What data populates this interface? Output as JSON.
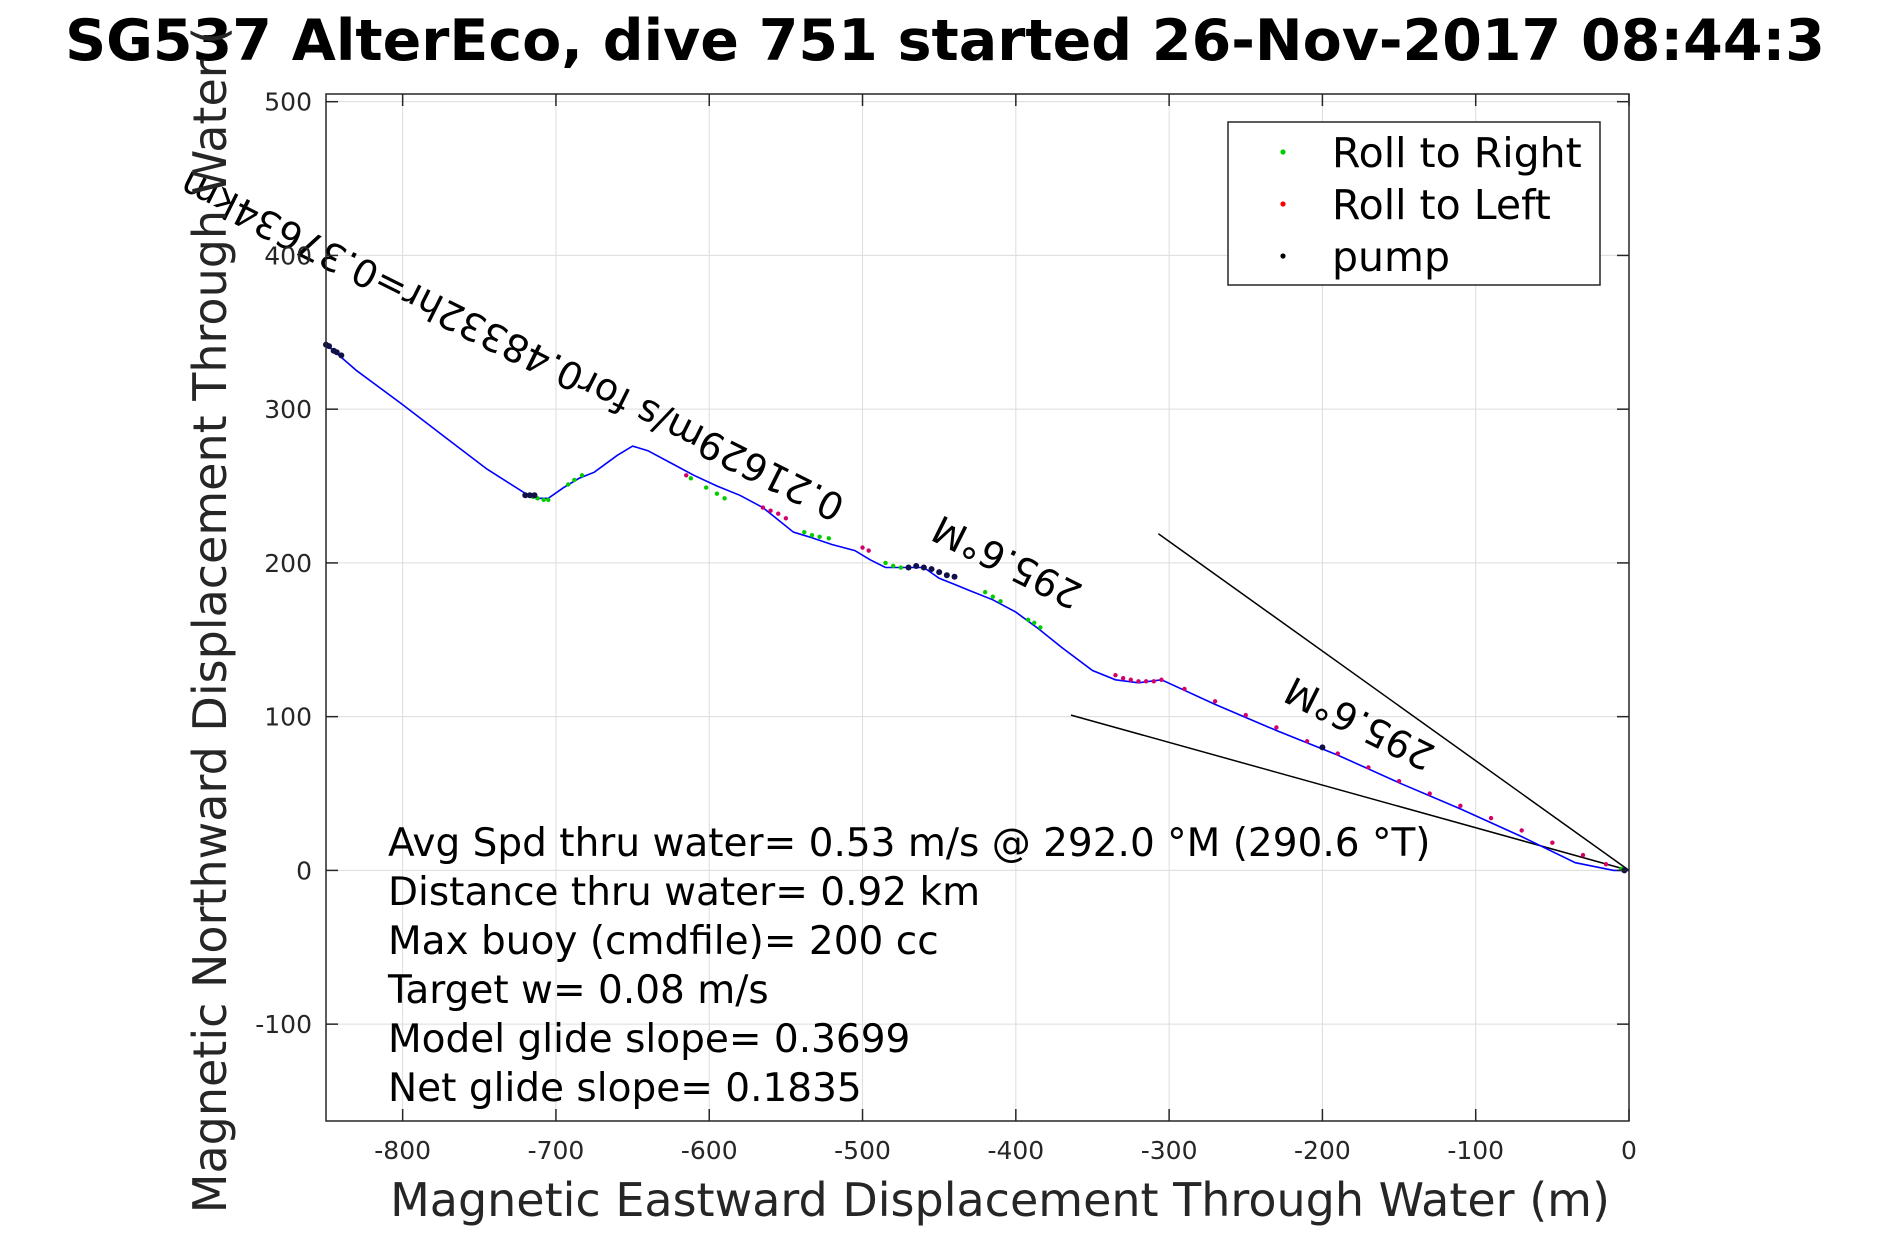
{
  "chart_data": {
    "type": "line",
    "title": "SG537 AlterEco, dive 751 started 26-Nov-2017 08:44:3",
    "xlabel": "Magnetic Eastward Displacement Through Water (m)",
    "ylabel": "Magnetic Northward Displacement Through Water (",
    "xlim": [
      -850,
      0
    ],
    "ylim": [
      -163,
      505
    ],
    "xticks": [
      -800,
      -700,
      -600,
      -500,
      -400,
      -300,
      -200,
      -100,
      0
    ],
    "yticks": [
      -100,
      0,
      100,
      200,
      300,
      400,
      500
    ],
    "xtick_labels": [
      "-800",
      "-700",
      "-600",
      "-500",
      "-400",
      "-300",
      "-200",
      "-100",
      "0"
    ],
    "ytick_labels": [
      "-100",
      "0",
      "100",
      "200",
      "300",
      "400",
      "500"
    ],
    "grid": true,
    "legend": {
      "placement": "top-right",
      "entries": [
        {
          "label": "Roll to Right",
          "color": "#00cc00"
        },
        {
          "label": "Roll to Left",
          "color": "#ff0000"
        },
        {
          "label": "pump",
          "color": "#000000"
        }
      ]
    },
    "track": {
      "name": "track",
      "color": "#0000ff",
      "x": [
        -850,
        -845,
        -830,
        -800,
        -770,
        -745,
        -718,
        -712,
        -705,
        -695,
        -685,
        -675,
        -660,
        -650,
        -640,
        -625,
        -610,
        -595,
        -580,
        -565,
        -555,
        -545,
        -535,
        -520,
        -505,
        -495,
        -485,
        -470,
        -460,
        -450,
        -440,
        -430,
        -415,
        -400,
        -385,
        -370,
        -350,
        -335,
        -320,
        -305,
        -270,
        -230,
        -190,
        -150,
        -110,
        -70,
        -35,
        -10,
        0
      ],
      "y": [
        342,
        338,
        325,
        303,
        280,
        261,
        244,
        242,
        242,
        249,
        255,
        259,
        270,
        276,
        273,
        265,
        257,
        250,
        244,
        236,
        228,
        220,
        217,
        212,
        208,
        202,
        197,
        197,
        197,
        190,
        186,
        182,
        176,
        168,
        157,
        145,
        130,
        124,
        122,
        124,
        108,
        91,
        75,
        57,
        40,
        22,
        5,
        0,
        0
      ]
    },
    "roll_right": {
      "x": [
        -715,
        -712,
        -708,
        -705,
        -692,
        -688,
        -683,
        -612,
        -602,
        -595,
        -590,
        -538,
        -533,
        -528,
        -522,
        -485,
        -480,
        -475,
        -420,
        -415,
        -410,
        -392,
        -388,
        -384,
        -5
      ],
      "y": [
        243,
        242,
        241,
        241,
        251,
        254,
        257,
        255,
        249,
        245,
        242,
        220,
        218,
        217,
        216,
        200,
        198,
        197,
        181,
        178,
        175,
        163,
        161,
        158,
        1
      ]
    },
    "roll_left": {
      "x": [
        -615,
        -565,
        -560,
        -555,
        -550,
        -500,
        -496,
        -335,
        -330,
        -325,
        -320,
        -315,
        -310,
        -305,
        -290,
        -270,
        -250,
        -230,
        -210,
        -190,
        -170,
        -150,
        -130,
        -110,
        -90,
        -70,
        -50,
        -30,
        -15,
        -3
      ],
      "y": [
        257,
        236,
        234,
        232,
        229,
        210,
        208,
        127,
        125,
        124,
        123,
        123,
        123,
        124,
        118,
        110,
        101,
        93,
        84,
        76,
        67,
        58,
        50,
        42,
        34,
        26,
        18,
        10,
        4,
        0
      ]
    },
    "pump": {
      "x": [
        -850,
        -848,
        -845,
        -843,
        -840,
        -720,
        -717,
        -714,
        -470,
        -465,
        -460,
        -455,
        -450,
        -445,
        -440,
        -200,
        -3
      ],
      "y": [
        342,
        341,
        338,
        337,
        335,
        244,
        244,
        244,
        197,
        198,
        197,
        196,
        194,
        192,
        191,
        80,
        0
      ]
    },
    "guide_lines": [
      {
        "x": [
          -307,
          0
        ],
        "y": [
          219,
          0
        ]
      },
      {
        "x": [
          -364,
          0
        ],
        "y": [
          101,
          0
        ]
      }
    ],
    "rotated_labels": [
      {
        "text": "0.21629m/s for0.48332hr=0.37634km",
        "x": -510,
        "y": 242,
        "angle": 206.5
      },
      {
        "text": "295.6°M",
        "x": -355,
        "y": 185,
        "angle": 206.5
      },
      {
        "text": "295.6°M",
        "x": -125,
        "y": 80,
        "angle": 206.5
      }
    ],
    "annotations": [
      "Avg Spd thru water=  0.53 m/s @ 292.0 °M (290.6  °T)",
      "Distance thru water=  0.92 km",
      "Max buoy (cmdfile)= 200 cc",
      "Target w= 0.08 m/s",
      "Model glide slope= 0.3699",
      "Net glide slope= 0.1835"
    ]
  }
}
